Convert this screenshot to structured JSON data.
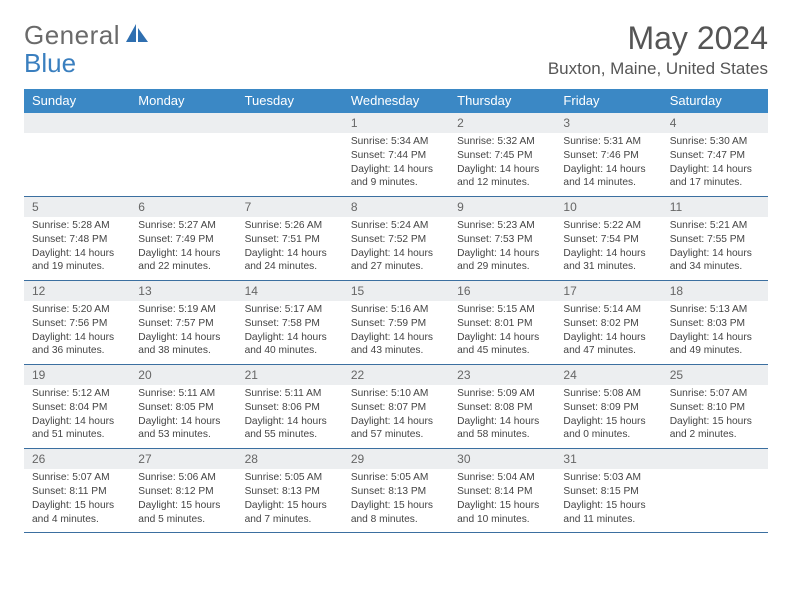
{
  "brand": {
    "part1": "General",
    "part2": "Blue"
  },
  "title": "May 2024",
  "location": "Buxton, Maine, United States",
  "colors": {
    "header_bg": "#3b88c5",
    "daynum_bg": "#eceef0",
    "week_border": "#3b6fa0",
    "text": "#444"
  },
  "dow": [
    "Sunday",
    "Monday",
    "Tuesday",
    "Wednesday",
    "Thursday",
    "Friday",
    "Saturday"
  ],
  "weeks": [
    [
      {
        "n": "",
        "s": "",
        "u": "",
        "d1": "",
        "d2": ""
      },
      {
        "n": "",
        "s": "",
        "u": "",
        "d1": "",
        "d2": ""
      },
      {
        "n": "",
        "s": "",
        "u": "",
        "d1": "",
        "d2": ""
      },
      {
        "n": "1",
        "s": "Sunrise: 5:34 AM",
        "u": "Sunset: 7:44 PM",
        "d1": "Daylight: 14 hours",
        "d2": "and 9 minutes."
      },
      {
        "n": "2",
        "s": "Sunrise: 5:32 AM",
        "u": "Sunset: 7:45 PM",
        "d1": "Daylight: 14 hours",
        "d2": "and 12 minutes."
      },
      {
        "n": "3",
        "s": "Sunrise: 5:31 AM",
        "u": "Sunset: 7:46 PM",
        "d1": "Daylight: 14 hours",
        "d2": "and 14 minutes."
      },
      {
        "n": "4",
        "s": "Sunrise: 5:30 AM",
        "u": "Sunset: 7:47 PM",
        "d1": "Daylight: 14 hours",
        "d2": "and 17 minutes."
      }
    ],
    [
      {
        "n": "5",
        "s": "Sunrise: 5:28 AM",
        "u": "Sunset: 7:48 PM",
        "d1": "Daylight: 14 hours",
        "d2": "and 19 minutes."
      },
      {
        "n": "6",
        "s": "Sunrise: 5:27 AM",
        "u": "Sunset: 7:49 PM",
        "d1": "Daylight: 14 hours",
        "d2": "and 22 minutes."
      },
      {
        "n": "7",
        "s": "Sunrise: 5:26 AM",
        "u": "Sunset: 7:51 PM",
        "d1": "Daylight: 14 hours",
        "d2": "and 24 minutes."
      },
      {
        "n": "8",
        "s": "Sunrise: 5:24 AM",
        "u": "Sunset: 7:52 PM",
        "d1": "Daylight: 14 hours",
        "d2": "and 27 minutes."
      },
      {
        "n": "9",
        "s": "Sunrise: 5:23 AM",
        "u": "Sunset: 7:53 PM",
        "d1": "Daylight: 14 hours",
        "d2": "and 29 minutes."
      },
      {
        "n": "10",
        "s": "Sunrise: 5:22 AM",
        "u": "Sunset: 7:54 PM",
        "d1": "Daylight: 14 hours",
        "d2": "and 31 minutes."
      },
      {
        "n": "11",
        "s": "Sunrise: 5:21 AM",
        "u": "Sunset: 7:55 PM",
        "d1": "Daylight: 14 hours",
        "d2": "and 34 minutes."
      }
    ],
    [
      {
        "n": "12",
        "s": "Sunrise: 5:20 AM",
        "u": "Sunset: 7:56 PM",
        "d1": "Daylight: 14 hours",
        "d2": "and 36 minutes."
      },
      {
        "n": "13",
        "s": "Sunrise: 5:19 AM",
        "u": "Sunset: 7:57 PM",
        "d1": "Daylight: 14 hours",
        "d2": "and 38 minutes."
      },
      {
        "n": "14",
        "s": "Sunrise: 5:17 AM",
        "u": "Sunset: 7:58 PM",
        "d1": "Daylight: 14 hours",
        "d2": "and 40 minutes."
      },
      {
        "n": "15",
        "s": "Sunrise: 5:16 AM",
        "u": "Sunset: 7:59 PM",
        "d1": "Daylight: 14 hours",
        "d2": "and 43 minutes."
      },
      {
        "n": "16",
        "s": "Sunrise: 5:15 AM",
        "u": "Sunset: 8:01 PM",
        "d1": "Daylight: 14 hours",
        "d2": "and 45 minutes."
      },
      {
        "n": "17",
        "s": "Sunrise: 5:14 AM",
        "u": "Sunset: 8:02 PM",
        "d1": "Daylight: 14 hours",
        "d2": "and 47 minutes."
      },
      {
        "n": "18",
        "s": "Sunrise: 5:13 AM",
        "u": "Sunset: 8:03 PM",
        "d1": "Daylight: 14 hours",
        "d2": "and 49 minutes."
      }
    ],
    [
      {
        "n": "19",
        "s": "Sunrise: 5:12 AM",
        "u": "Sunset: 8:04 PM",
        "d1": "Daylight: 14 hours",
        "d2": "and 51 minutes."
      },
      {
        "n": "20",
        "s": "Sunrise: 5:11 AM",
        "u": "Sunset: 8:05 PM",
        "d1": "Daylight: 14 hours",
        "d2": "and 53 minutes."
      },
      {
        "n": "21",
        "s": "Sunrise: 5:11 AM",
        "u": "Sunset: 8:06 PM",
        "d1": "Daylight: 14 hours",
        "d2": "and 55 minutes."
      },
      {
        "n": "22",
        "s": "Sunrise: 5:10 AM",
        "u": "Sunset: 8:07 PM",
        "d1": "Daylight: 14 hours",
        "d2": "and 57 minutes."
      },
      {
        "n": "23",
        "s": "Sunrise: 5:09 AM",
        "u": "Sunset: 8:08 PM",
        "d1": "Daylight: 14 hours",
        "d2": "and 58 minutes."
      },
      {
        "n": "24",
        "s": "Sunrise: 5:08 AM",
        "u": "Sunset: 8:09 PM",
        "d1": "Daylight: 15 hours",
        "d2": "and 0 minutes."
      },
      {
        "n": "25",
        "s": "Sunrise: 5:07 AM",
        "u": "Sunset: 8:10 PM",
        "d1": "Daylight: 15 hours",
        "d2": "and 2 minutes."
      }
    ],
    [
      {
        "n": "26",
        "s": "Sunrise: 5:07 AM",
        "u": "Sunset: 8:11 PM",
        "d1": "Daylight: 15 hours",
        "d2": "and 4 minutes."
      },
      {
        "n": "27",
        "s": "Sunrise: 5:06 AM",
        "u": "Sunset: 8:12 PM",
        "d1": "Daylight: 15 hours",
        "d2": "and 5 minutes."
      },
      {
        "n": "28",
        "s": "Sunrise: 5:05 AM",
        "u": "Sunset: 8:13 PM",
        "d1": "Daylight: 15 hours",
        "d2": "and 7 minutes."
      },
      {
        "n": "29",
        "s": "Sunrise: 5:05 AM",
        "u": "Sunset: 8:13 PM",
        "d1": "Daylight: 15 hours",
        "d2": "and 8 minutes."
      },
      {
        "n": "30",
        "s": "Sunrise: 5:04 AM",
        "u": "Sunset: 8:14 PM",
        "d1": "Daylight: 15 hours",
        "d2": "and 10 minutes."
      },
      {
        "n": "31",
        "s": "Sunrise: 5:03 AM",
        "u": "Sunset: 8:15 PM",
        "d1": "Daylight: 15 hours",
        "d2": "and 11 minutes."
      },
      {
        "n": "",
        "s": "",
        "u": "",
        "d1": "",
        "d2": ""
      }
    ]
  ]
}
